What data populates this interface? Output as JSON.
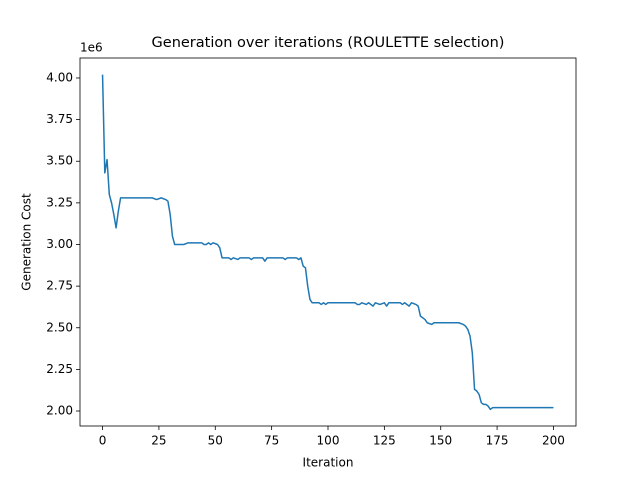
{
  "chart_data": {
    "type": "line",
    "title": "Generation over iterations (ROULETTE selection)",
    "x_label": "Iteration",
    "y_label": "Generation Cost",
    "y_offset_label": "1e6",
    "color": "#1f77b4",
    "x": [
      0,
      1,
      2,
      3,
      4,
      5,
      6,
      7,
      8,
      22,
      24,
      26,
      28,
      29,
      30,
      31,
      32,
      34,
      36,
      38,
      44,
      45,
      46,
      47,
      48,
      49,
      51,
      52,
      53,
      56,
      57,
      58,
      60,
      61,
      65,
      66,
      67,
      71,
      72,
      73,
      80,
      81,
      82,
      86,
      87,
      88,
      89,
      90,
      91,
      92,
      93,
      96,
      97,
      98,
      99,
      100,
      112,
      113,
      114,
      115,
      117,
      118,
      120,
      121,
      123,
      125,
      126,
      127,
      132,
      133,
      134,
      136,
      137,
      139,
      140,
      141,
      143,
      144,
      146,
      147,
      158,
      160,
      161,
      162,
      163,
      164,
      165,
      166,
      167,
      168,
      169,
      170,
      171,
      172,
      173,
      200
    ],
    "values": [
      4.02,
      3.43,
      3.51,
      3.3,
      3.25,
      3.18,
      3.1,
      3.2,
      3.28,
      3.28,
      3.27,
      3.28,
      3.27,
      3.26,
      3.18,
      3.05,
      3.0,
      3.0,
      3.0,
      3.01,
      3.01,
      3.0,
      3.0,
      3.01,
      3.0,
      3.01,
      3.0,
      2.98,
      2.92,
      2.92,
      2.91,
      2.92,
      2.91,
      2.92,
      2.92,
      2.91,
      2.92,
      2.92,
      2.9,
      2.92,
      2.92,
      2.91,
      2.92,
      2.92,
      2.91,
      2.92,
      2.87,
      2.86,
      2.75,
      2.67,
      2.65,
      2.65,
      2.64,
      2.65,
      2.64,
      2.65,
      2.65,
      2.64,
      2.64,
      2.65,
      2.64,
      2.65,
      2.63,
      2.65,
      2.64,
      2.65,
      2.63,
      2.65,
      2.65,
      2.64,
      2.65,
      2.63,
      2.65,
      2.64,
      2.63,
      2.57,
      2.55,
      2.53,
      2.52,
      2.53,
      2.53,
      2.52,
      2.51,
      2.49,
      2.45,
      2.35,
      2.13,
      2.12,
      2.1,
      2.05,
      2.04,
      2.04,
      2.03,
      2.01,
      2.02,
      2.02
    ],
    "xlim": [
      -10,
      210
    ],
    "ylim": [
      1.91,
      4.12
    ],
    "xticks": [
      0,
      25,
      50,
      75,
      100,
      125,
      150,
      175,
      200
    ],
    "yticks": [
      {
        "value": 2,
        "label": "2.00"
      },
      {
        "value": 2.25,
        "label": "2.25"
      },
      {
        "value": 2.5,
        "label": "2.50"
      },
      {
        "value": 2.75,
        "label": "2.75"
      },
      {
        "value": 3,
        "label": "3.00"
      },
      {
        "value": 3.25,
        "label": "3.25"
      },
      {
        "value": 3.5,
        "label": "3.50"
      },
      {
        "value": 3.75,
        "label": "3.75"
      },
      {
        "value": 4,
        "label": "4.00"
      }
    ]
  }
}
